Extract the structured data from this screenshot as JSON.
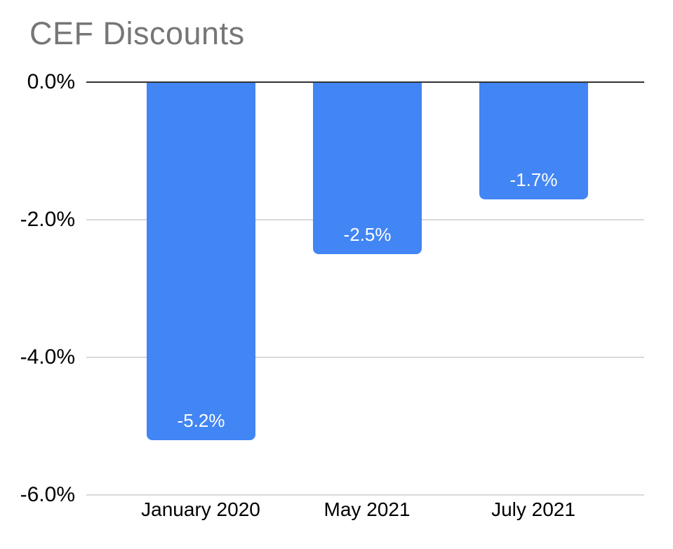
{
  "title": "CEF Discounts",
  "colors": {
    "bar": "#4285F4",
    "bar_label": "#FFFFFF",
    "title_text": "#767676",
    "tick_label_text": "#000000",
    "category_label_text": "#000000",
    "zero_axis_line": "#333333",
    "gridline": "#D9D9D9",
    "background": "#FFFFFF"
  },
  "chart_data": {
    "type": "bar",
    "orientation": "vertical",
    "title": "CEF Discounts",
    "xlabel": "",
    "ylabel": "",
    "categories": [
      "January 2020",
      "May 2021",
      "July 2021"
    ],
    "values": [
      -5.2,
      -2.5,
      -1.7
    ],
    "data_labels": [
      "-5.2%",
      "-2.5%",
      "-1.7%"
    ],
    "ylim": [
      -6.0,
      0.0
    ],
    "yticks": [
      0.0,
      -2.0,
      -4.0,
      -6.0
    ],
    "ytick_labels": [
      "0.0%",
      "-2.0%",
      "-4.0%",
      "-6.0%"
    ],
    "grid": true,
    "legend": false,
    "data_label_position": "inside-bottom"
  }
}
